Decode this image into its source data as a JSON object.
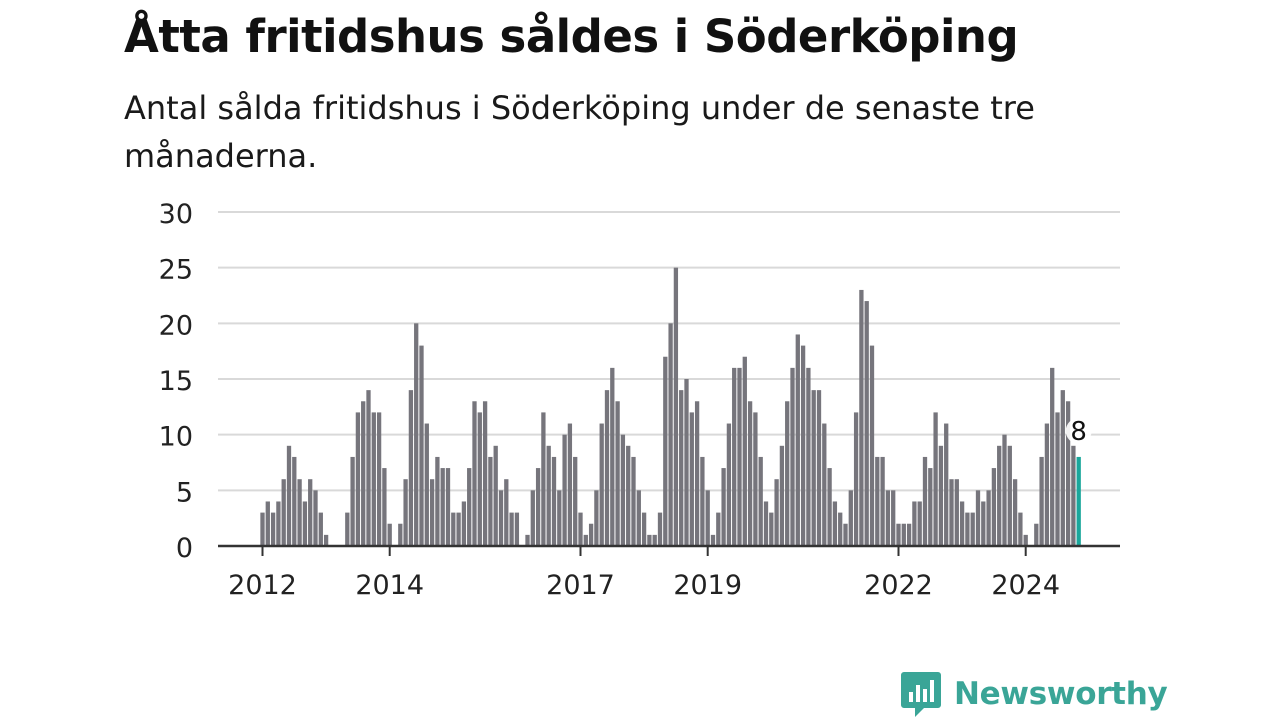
{
  "header": {
    "title": "Åtta fritidshus såldes i Söderköping",
    "subtitle": "Antal sålda fritidshus i Söderköping under de senaste tre månaderna."
  },
  "brand": {
    "name": "Newsworthy",
    "color": "#3aa597",
    "icon": "bar-chart-speech-bubble-icon"
  },
  "chart_data": {
    "type": "bar",
    "title": "Åtta fritidshus såldes i Söderköping",
    "subtitle": "Antal sålda fritidshus i Söderköping under de senaste tre månaderna.",
    "xlabel": "",
    "ylabel": "",
    "ylim": [
      0,
      30
    ],
    "yticks": [
      0,
      5,
      10,
      15,
      20,
      25,
      30
    ],
    "xticks": [
      {
        "label": "2012",
        "index": 0
      },
      {
        "label": "2014",
        "index": 24
      },
      {
        "label": "2017",
        "index": 60
      },
      {
        "label": "2019",
        "index": 84
      },
      {
        "label": "2022",
        "index": 120
      },
      {
        "label": "2024",
        "index": 144
      }
    ],
    "grid": true,
    "bar_color": "#76757c",
    "highlight_color": "#1aa79c",
    "highlight_label": "8",
    "values": [
      3,
      4,
      3,
      4,
      6,
      9,
      8,
      6,
      4,
      6,
      5,
      3,
      1,
      0,
      0,
      0,
      3,
      8,
      12,
      13,
      14,
      12,
      12,
      7,
      2,
      0,
      2,
      6,
      14,
      20,
      18,
      11,
      6,
      8,
      7,
      7,
      3,
      3,
      4,
      7,
      13,
      12,
      13,
      8,
      9,
      5,
      6,
      3,
      3,
      0,
      1,
      5,
      7,
      12,
      9,
      8,
      5,
      10,
      11,
      8,
      3,
      1,
      2,
      5,
      11,
      14,
      16,
      13,
      10,
      9,
      8,
      5,
      3,
      1,
      1,
      3,
      17,
      20,
      25,
      14,
      15,
      12,
      13,
      8,
      5,
      1,
      3,
      7,
      11,
      16,
      16,
      17,
      13,
      12,
      8,
      4,
      3,
      6,
      9,
      13,
      16,
      19,
      18,
      16,
      14,
      14,
      11,
      7,
      4,
      3,
      2,
      5,
      12,
      23,
      22,
      18,
      8,
      8,
      5,
      5,
      2,
      2,
      2,
      4,
      4,
      8,
      7,
      12,
      9,
      11,
      6,
      6,
      4,
      3,
      3,
      5,
      4,
      5,
      7,
      9,
      10,
      9,
      6,
      3,
      1,
      0,
      2,
      8,
      11,
      16,
      12,
      14,
      13,
      9,
      8
    ]
  }
}
